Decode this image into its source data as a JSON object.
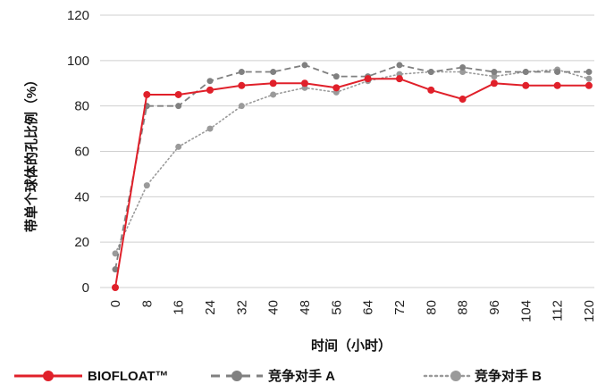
{
  "chart_data": {
    "type": "line",
    "xlabel": "时间（小时）",
    "ylabel": "带单个球体的孔比例（%）",
    "ylim": [
      0,
      120
    ],
    "yticks": [
      0,
      20,
      40,
      60,
      80,
      100,
      120
    ],
    "x": [
      0,
      8,
      16,
      24,
      32,
      40,
      48,
      56,
      64,
      72,
      80,
      88,
      96,
      104,
      112,
      120
    ],
    "x_tick_labels": [
      "0",
      "8",
      "16",
      "24",
      "32",
      "40",
      "48",
      "56",
      "64",
      "72",
      "80",
      "88",
      "96",
      "104",
      "112",
      "120"
    ],
    "grid": "horizontal",
    "legend_position": "bottom",
    "series": [
      {
        "name": "BIOFLOAT™",
        "color": "#e0202a",
        "line_style": "solid",
        "values": [
          0,
          85,
          85,
          87,
          89,
          90,
          90,
          88,
          92,
          92,
          87,
          83,
          90,
          89,
          89,
          89
        ]
      },
      {
        "name": "竞争对手 A",
        "color": "#808080",
        "line_style": "dashed",
        "values": [
          8,
          80,
          80,
          91,
          95,
          95,
          98,
          93,
          93,
          98,
          95,
          97,
          95,
          95,
          95,
          95
        ]
      },
      {
        "name": "竞争对手 B",
        "color": "#9a9a9a",
        "line_style": "dotted",
        "values": [
          15,
          45,
          62,
          70,
          80,
          85,
          88,
          86,
          91,
          94,
          95,
          95,
          93,
          95,
          96,
          92
        ]
      }
    ]
  }
}
